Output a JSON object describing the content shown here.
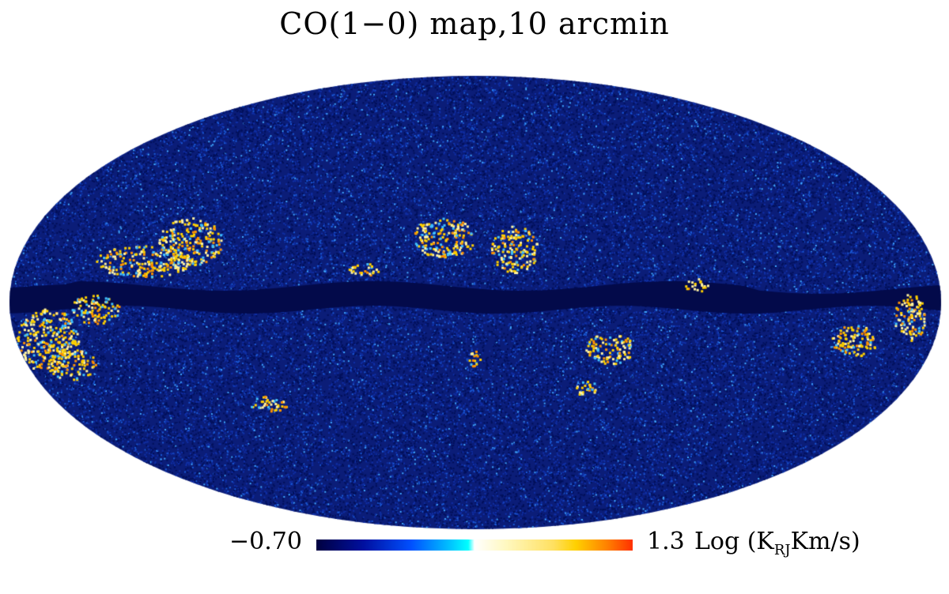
{
  "chart_data": {
    "type": "heatmap",
    "projection": "mollweide",
    "title": "CO(1−0) map,10 arcmin",
    "colorbar": {
      "min_label": "−0.70",
      "max_label": "1.3",
      "min": -0.7,
      "max": 1.3,
      "units_prefix": "Log (K",
      "units_sub": "RJ",
      "units_suffix": "Km/s)",
      "colors": [
        "#000040",
        "#0010a0",
        "#0050ff",
        "#00ffff",
        "#ffffff",
        "#ffe060",
        "#ffd000",
        "#ff3000"
      ]
    }
  }
}
